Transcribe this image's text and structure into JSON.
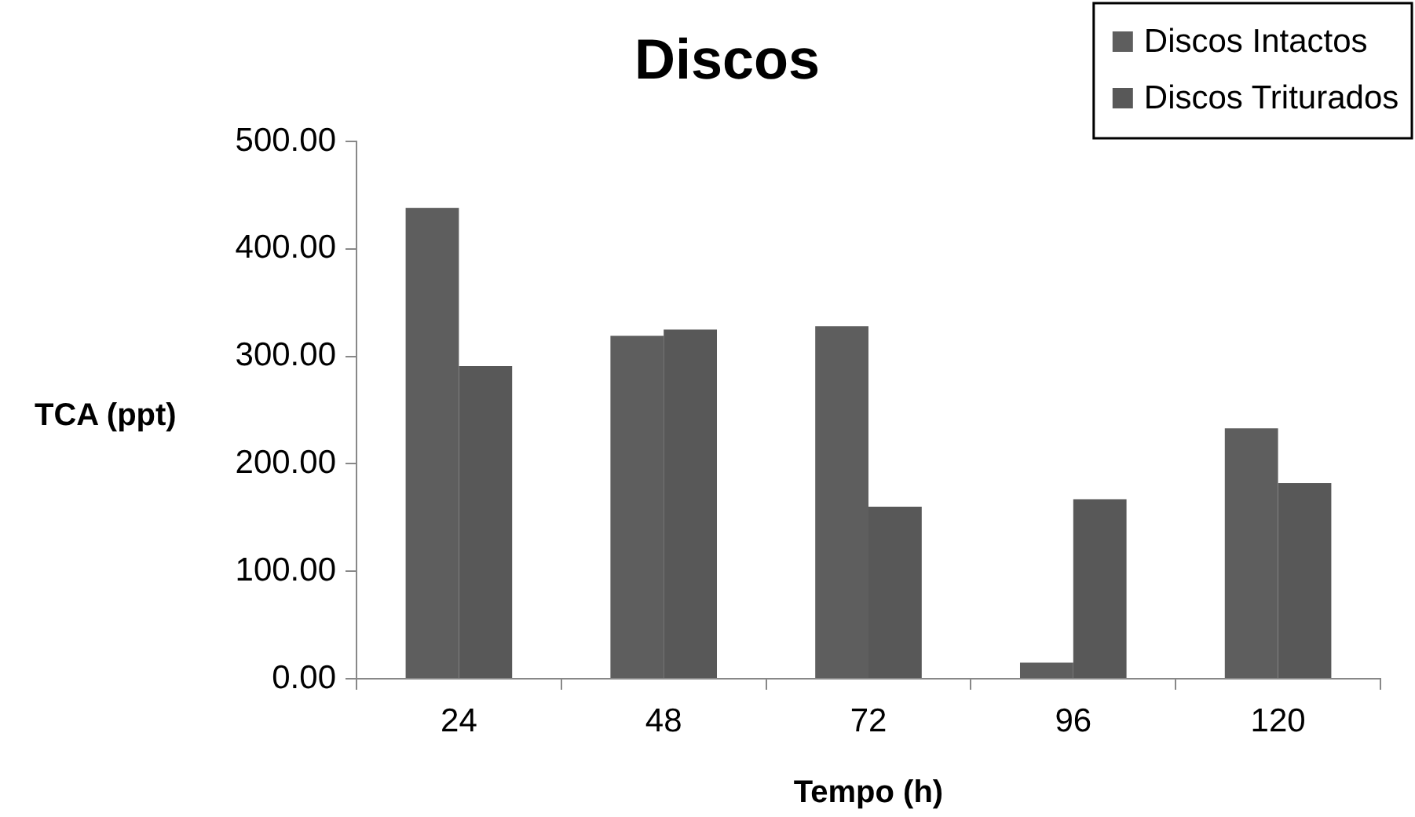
{
  "chart_data": {
    "type": "bar",
    "title": "Discos",
    "xlabel": "Tempo (h)",
    "ylabel": "TCA (ppt)",
    "categories": [
      "24",
      "48",
      "72",
      "96",
      "120"
    ],
    "series": [
      {
        "name": "Discos Intactos",
        "color": "#5e5e5e",
        "values": [
          438,
          319,
          328,
          15,
          233
        ]
      },
      {
        "name": "Discos Triturados",
        "color": "#585858",
        "values": [
          291,
          325,
          160,
          167,
          182
        ]
      }
    ],
    "ylim": [
      0,
      500
    ],
    "yticks": [
      {
        "value": 0,
        "label": "0.00"
      },
      {
        "value": 100,
        "label": "100.00"
      },
      {
        "value": 200,
        "label": "200.00"
      },
      {
        "value": 300,
        "label": "300.00"
      },
      {
        "value": 400,
        "label": "400.00"
      },
      {
        "value": 500,
        "label": "500.00"
      }
    ],
    "grid": false,
    "legend": "top right"
  }
}
